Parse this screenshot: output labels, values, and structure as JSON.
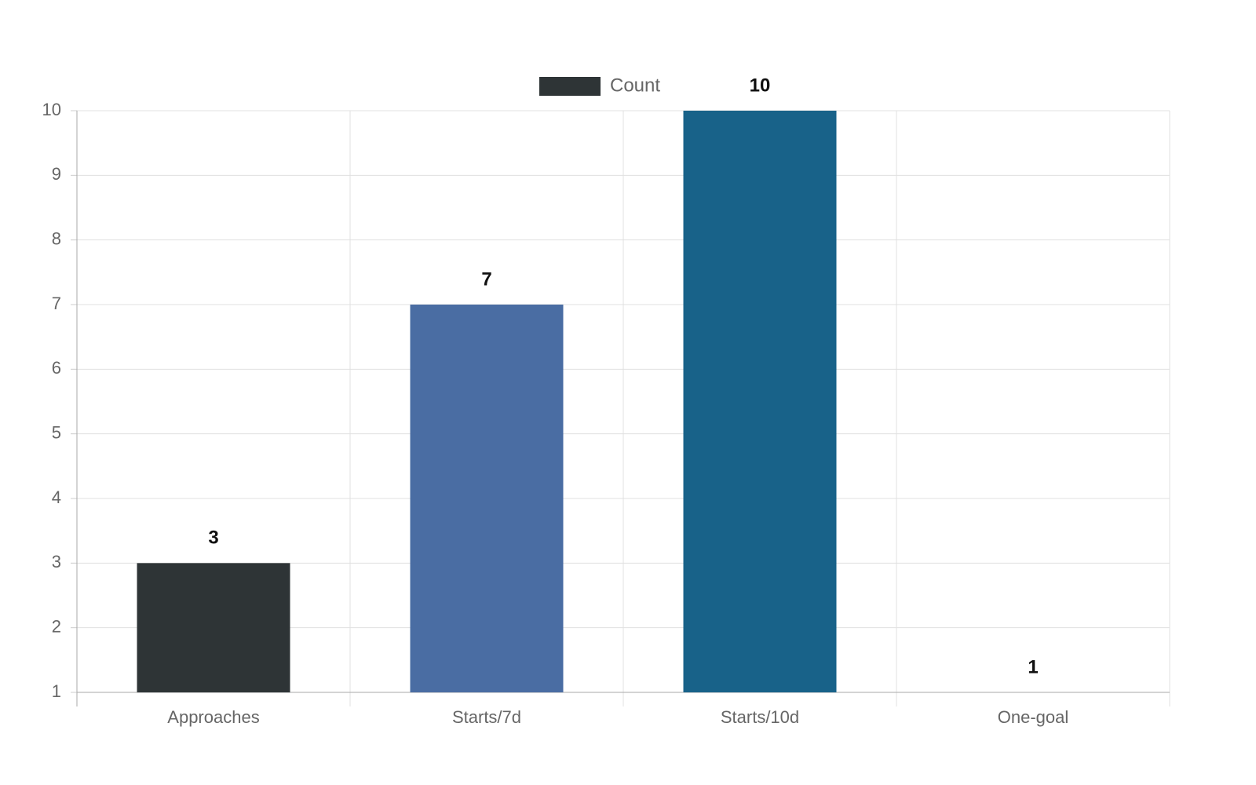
{
  "chart_data": {
    "type": "bar",
    "categories": [
      "Approaches",
      "Starts/7d",
      "Starts/10d",
      "One-goal"
    ],
    "series": [
      {
        "name": "Count",
        "colors": [
          "#2e3436",
          "#4a6da3",
          "#186289",
          "#a0a0a0"
        ],
        "values": [
          3,
          7,
          10,
          1
        ]
      }
    ],
    "ylim": [
      1,
      10
    ],
    "yticks": [
      1,
      2,
      3,
      4,
      5,
      6,
      7,
      8,
      9,
      10
    ],
    "grid": true,
    "legend": "top"
  }
}
